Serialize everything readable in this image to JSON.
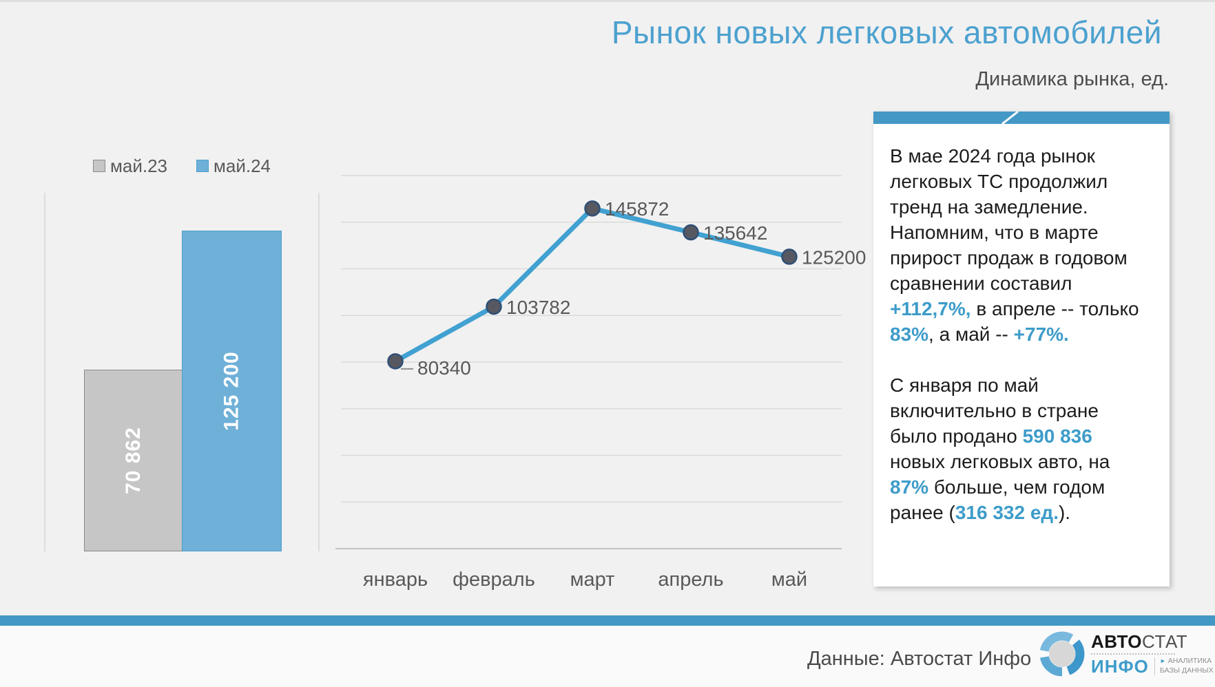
{
  "page": {
    "title": "Рынок новых легковых автомобилей",
    "subtitle": "Динамика рынка, ед."
  },
  "colors": {
    "accent_blue": "#4398c5",
    "title_blue": "#4ca1cf",
    "bar_gray": "#c6c6c6",
    "bar_gray_border": "#8a8a8a",
    "bar_blue": "#6fb0d8",
    "bar_blue_border": "#4d9fcc",
    "line_blue": "#41a1d1",
    "marker_fill": "#575861",
    "marker_stroke": "#2f4f76",
    "grid_line": "#dbdbdb",
    "axis_line": "#c2c2c2",
    "label_gray": "#595959",
    "highlight_blue": "#3d9cc9"
  },
  "chart_data": [
    {
      "type": "bar",
      "title": "",
      "categories": [
        "май.23",
        "май.24"
      ],
      "values": [
        70862,
        125200
      ],
      "value_labels": [
        "70 862",
        "125 200"
      ],
      "series_colors": [
        "#c6c6c6",
        "#6fb0d8"
      ],
      "series_borders": [
        "#8a8a8a",
        "#4d9fcc"
      ],
      "ylim": [
        0,
        140000
      ],
      "legend_position": "top",
      "grid": false
    },
    {
      "type": "line",
      "categories": [
        "январь",
        "февраль",
        "март",
        "апрель",
        "май"
      ],
      "values": [
        80340,
        103782,
        145872,
        135642,
        125200
      ],
      "value_labels": [
        "80340",
        "103782",
        "145872",
        "135642",
        "125200"
      ],
      "ylim": [
        0,
        160000
      ],
      "grid_step": 20000,
      "grid": true,
      "legend_position": "none",
      "xlabel": "",
      "ylabel": ""
    }
  ],
  "panel": {
    "paragraphs": [
      [
        {
          "t": "В мае 2024 года рынок легковых ТС продолжил тренд на замедление. Напомним, что в марте прирост продаж в годовом сравнении составил ",
          "s": "n"
        },
        {
          "t": "+112,7%,",
          "s": "b"
        },
        {
          "t": " в апреле --  только ",
          "s": "n"
        },
        {
          "t": "83%",
          "s": "b"
        },
        {
          "t": ", а май -- ",
          "s": "n"
        },
        {
          "t": "+77%.",
          "s": "b"
        }
      ],
      [
        {
          "t": "С января по май включительно в стране было продано ",
          "s": "n"
        },
        {
          "t": "590 836",
          "s": "b"
        },
        {
          "t": " новых легковых авто, на ",
          "s": "n"
        },
        {
          "t": "87%",
          "s": "b"
        },
        {
          "t": " больше, чем годом ранее (",
          "s": "n"
        },
        {
          "t": "316 332 ед.",
          "s": "b"
        },
        {
          "t": ").",
          "s": "n"
        }
      ]
    ]
  },
  "footer": {
    "source": "Данные: Автостат Инфо",
    "logo": {
      "brand_bold": "АВТО",
      "brand_light": "СТАТ",
      "info": "ИНФО",
      "tagline_line1": "АНАЛИТИКА",
      "tagline_line2": "БАЗЫ ДАННЫХ"
    }
  }
}
